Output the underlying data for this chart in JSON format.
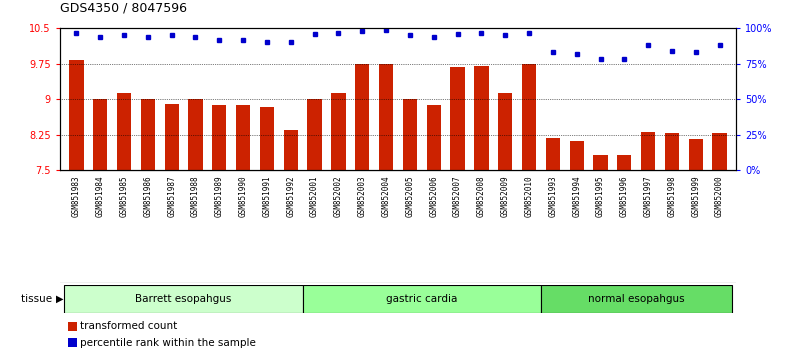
{
  "title": "GDS4350 / 8047596",
  "samples": [
    "GSM851983",
    "GSM851984",
    "GSM851985",
    "GSM851986",
    "GSM851987",
    "GSM851988",
    "GSM851989",
    "GSM851990",
    "GSM851991",
    "GSM851992",
    "GSM852001",
    "GSM852002",
    "GSM852003",
    "GSM852004",
    "GSM852005",
    "GSM852006",
    "GSM852007",
    "GSM852008",
    "GSM852009",
    "GSM852010",
    "GSM851993",
    "GSM851994",
    "GSM851995",
    "GSM851996",
    "GSM851997",
    "GSM851998",
    "GSM851999",
    "GSM852000"
  ],
  "bar_values": [
    9.83,
    9.0,
    9.12,
    9.0,
    8.9,
    9.0,
    8.88,
    8.88,
    8.83,
    8.35,
    9.0,
    9.12,
    9.75,
    9.75,
    9.0,
    8.87,
    9.68,
    9.7,
    9.12,
    9.75,
    8.18,
    8.12,
    7.82,
    7.82,
    8.3,
    8.28,
    8.15,
    8.28
  ],
  "dot_values": [
    97,
    94,
    95,
    94,
    95,
    94,
    92,
    92,
    90,
    90,
    96,
    97,
    98,
    99,
    95,
    94,
    96,
    97,
    95,
    97,
    83,
    82,
    78,
    78,
    88,
    84,
    83,
    88
  ],
  "groups": [
    {
      "label": "Barrett esopahgus",
      "start": 0,
      "end": 10,
      "color": "#ccffcc"
    },
    {
      "label": "gastric cardia",
      "start": 10,
      "end": 20,
      "color": "#99ff99"
    },
    {
      "label": "normal esopahgus",
      "start": 20,
      "end": 28,
      "color": "#66dd66"
    }
  ],
  "bar_color": "#cc2200",
  "dot_color": "#0000cc",
  "bar_bottom": 7.5,
  "ylim_left": [
    7.5,
    10.5
  ],
  "ylim_right": [
    0,
    100
  ],
  "yticks_left": [
    7.5,
    8.25,
    9.0,
    9.75,
    10.5
  ],
  "yticks_right": [
    0,
    25,
    50,
    75,
    100
  ],
  "ytick_labels_left": [
    "7.5",
    "8.25",
    "9",
    "9.75",
    "10.5"
  ],
  "ytick_labels_right": [
    "0%",
    "25%",
    "50%",
    "75%",
    "100%"
  ],
  "grid_values": [
    8.25,
    9.0,
    9.75
  ],
  "background_color": "#ffffff",
  "tick_bg_color": "#dddddd"
}
